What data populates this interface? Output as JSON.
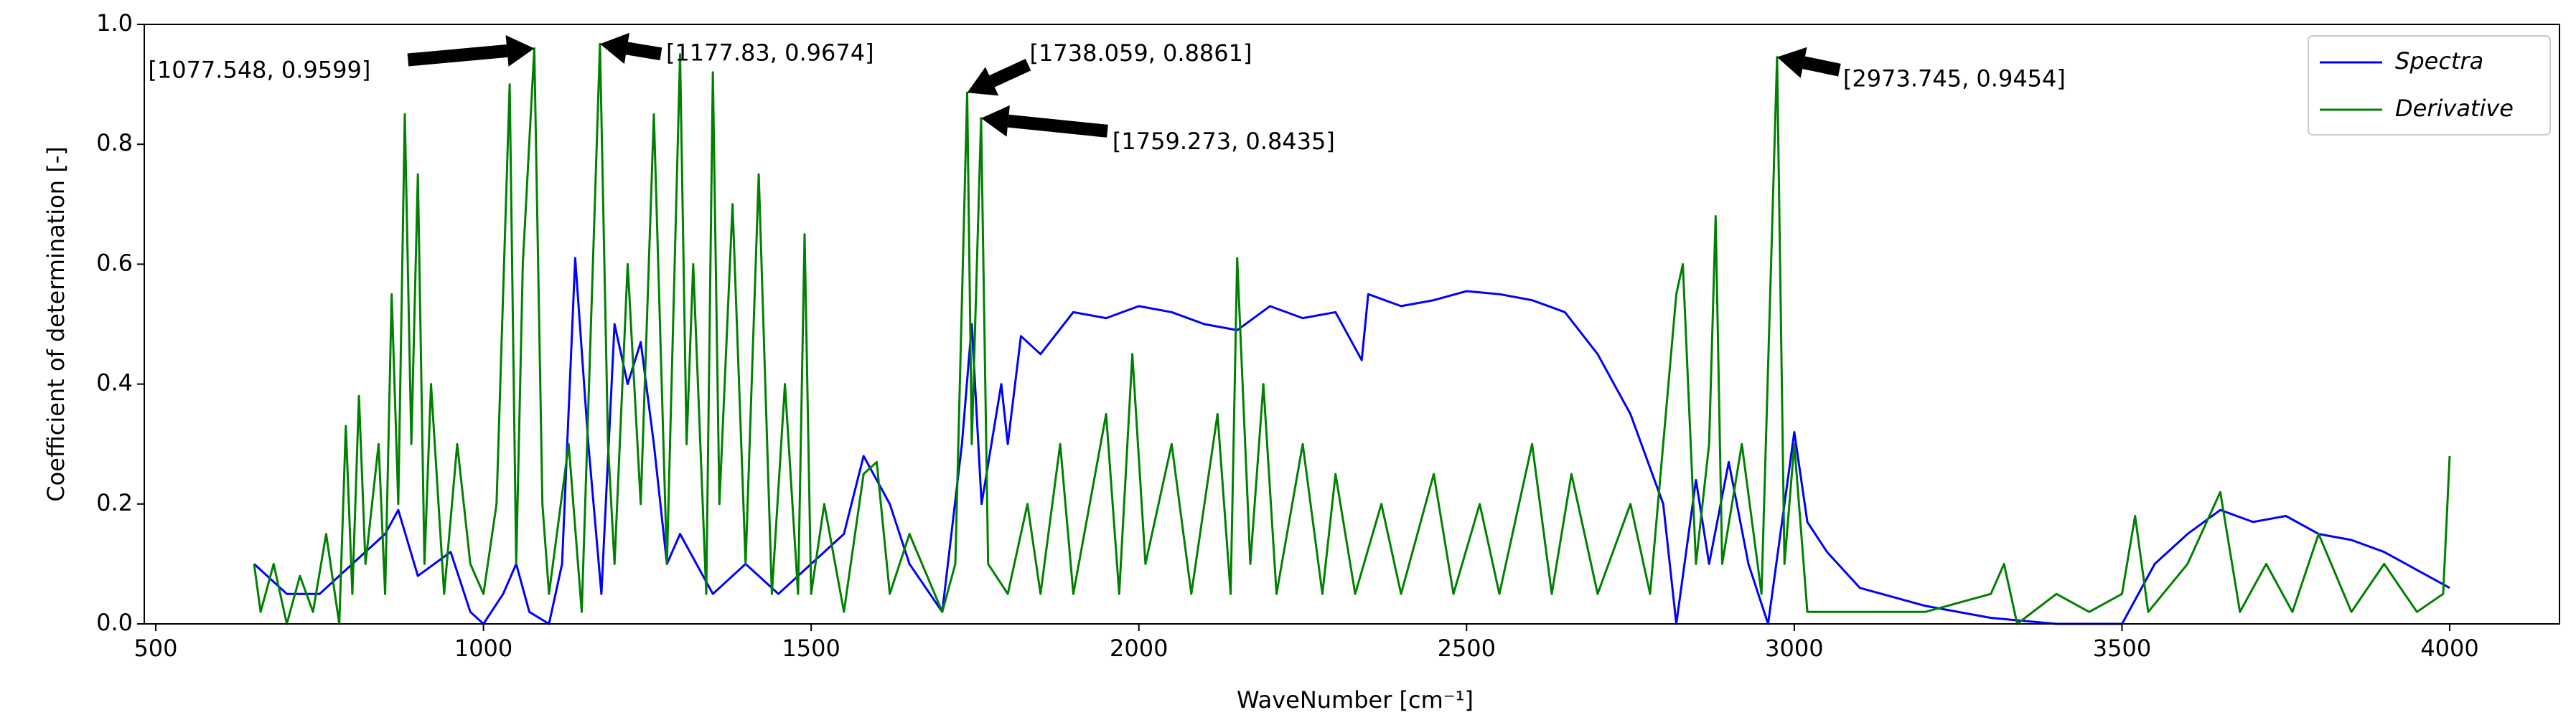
{
  "chart_data": {
    "type": "line",
    "xlabel": "WaveNumber [cm⁻¹]",
    "ylabel": "Coefficient of determination [-]",
    "xlim": [
      482.5,
      4167.5
    ],
    "ylim": [
      0,
      1
    ],
    "xticks": [
      500,
      1000,
      1500,
      2000,
      2500,
      3000,
      3500,
      4000
    ],
    "yticks": [
      {
        "value": 0,
        "label": "0.0"
      },
      0.2,
      0.4,
      0.6,
      0.8,
      {
        "value": 1,
        "label": "1.0"
      }
    ],
    "legend": "upper right",
    "series": [
      {
        "name": "Spectra",
        "color": "#0000ff",
        "x": [
          650,
          700,
          750,
          800,
          850,
          870,
          900,
          950,
          980,
          1000,
          1030,
          1050,
          1070,
          1100,
          1120,
          1140,
          1160,
          1180,
          1200,
          1220,
          1240,
          1260,
          1280,
          1300,
          1350,
          1400,
          1450,
          1500,
          1550,
          1580,
          1620,
          1650,
          1700,
          1730,
          1745,
          1760,
          1790,
          1800,
          1820,
          1850,
          1900,
          1950,
          2000,
          2050,
          2100,
          2150,
          2200,
          2250,
          2300,
          2340,
          2350,
          2400,
          2450,
          2500,
          2550,
          2600,
          2650,
          2700,
          2750,
          2800,
          2820,
          2850,
          2870,
          2900,
          2930,
          2960,
          3000,
          3020,
          3050,
          3100,
          3200,
          3300,
          3400,
          3500,
          3550,
          3600,
          3650,
          3700,
          3750,
          3800,
          3850,
          3900,
          3950,
          4000
        ],
        "values": [
          0.1,
          0.05,
          0.05,
          0.1,
          0.15,
          0.19,
          0.08,
          0.12,
          0.02,
          0.0,
          0.05,
          0.1,
          0.02,
          0.0,
          0.1,
          0.61,
          0.3,
          0.05,
          0.5,
          0.4,
          0.47,
          0.3,
          0.1,
          0.15,
          0.05,
          0.1,
          0.05,
          0.1,
          0.15,
          0.28,
          0.2,
          0.1,
          0.02,
          0.3,
          0.5,
          0.2,
          0.4,
          0.3,
          0.48,
          0.45,
          0.52,
          0.51,
          0.53,
          0.52,
          0.5,
          0.49,
          0.53,
          0.51,
          0.52,
          0.44,
          0.55,
          0.53,
          0.54,
          0.555,
          0.55,
          0.54,
          0.52,
          0.45,
          0.35,
          0.2,
          0.0,
          0.24,
          0.1,
          0.27,
          0.1,
          0.0,
          0.32,
          0.17,
          0.12,
          0.06,
          0.03,
          0.01,
          0.0,
          0.0,
          0.1,
          0.15,
          0.19,
          0.17,
          0.18,
          0.15,
          0.14,
          0.12,
          0.09,
          0.06
        ]
      },
      {
        "name": "Derivative",
        "color": "#008000",
        "x": [
          650,
          660,
          680,
          700,
          720,
          740,
          760,
          780,
          790,
          800,
          810,
          820,
          840,
          850,
          860,
          870,
          880,
          890,
          900,
          910,
          920,
          940,
          960,
          980,
          1000,
          1020,
          1040,
          1050,
          1060,
          1077.548,
          1090,
          1100,
          1130,
          1150,
          1177.83,
          1190,
          1200,
          1220,
          1240,
          1260,
          1280,
          1300,
          1310,
          1320,
          1340,
          1350,
          1360,
          1380,
          1400,
          1420,
          1440,
          1460,
          1480,
          1490,
          1500,
          1520,
          1550,
          1580,
          1600,
          1620,
          1650,
          1700,
          1720,
          1738.059,
          1745,
          1759.273,
          1770,
          1800,
          1830,
          1850,
          1880,
          1900,
          1950,
          1970,
          1990,
          2010,
          2050,
          2080,
          2120,
          2140,
          2150,
          2170,
          2190,
          2210,
          2250,
          2280,
          2300,
          2330,
          2370,
          2400,
          2450,
          2480,
          2520,
          2550,
          2600,
          2630,
          2660,
          2700,
          2750,
          2780,
          2820,
          2830,
          2850,
          2870,
          2880,
          2890,
          2920,
          2950,
          2973.745,
          2985,
          3000,
          3020,
          3100,
          3200,
          3300,
          3320,
          3340,
          3400,
          3450,
          3500,
          3520,
          3540,
          3600,
          3650,
          3680,
          3720,
          3760,
          3800,
          3850,
          3900,
          3950,
          3990,
          4000
        ],
        "values": [
          0.1,
          0.02,
          0.1,
          0.0,
          0.08,
          0.02,
          0.15,
          0.0,
          0.33,
          0.05,
          0.38,
          0.1,
          0.3,
          0.05,
          0.55,
          0.2,
          0.85,
          0.3,
          0.75,
          0.1,
          0.4,
          0.05,
          0.3,
          0.1,
          0.05,
          0.2,
          0.9,
          0.1,
          0.6,
          0.9599,
          0.2,
          0.05,
          0.3,
          0.02,
          0.9674,
          0.3,
          0.1,
          0.6,
          0.2,
          0.85,
          0.1,
          0.95,
          0.3,
          0.6,
          0.05,
          0.92,
          0.2,
          0.7,
          0.1,
          0.75,
          0.05,
          0.4,
          0.05,
          0.65,
          0.05,
          0.2,
          0.02,
          0.25,
          0.27,
          0.05,
          0.15,
          0.02,
          0.1,
          0.8861,
          0.3,
          0.8435,
          0.1,
          0.05,
          0.2,
          0.05,
          0.3,
          0.05,
          0.35,
          0.05,
          0.45,
          0.1,
          0.3,
          0.05,
          0.35,
          0.05,
          0.61,
          0.1,
          0.4,
          0.05,
          0.3,
          0.05,
          0.25,
          0.05,
          0.2,
          0.05,
          0.25,
          0.05,
          0.2,
          0.05,
          0.3,
          0.05,
          0.25,
          0.05,
          0.2,
          0.05,
          0.55,
          0.6,
          0.1,
          0.3,
          0.68,
          0.1,
          0.3,
          0.05,
          0.9454,
          0.1,
          0.3,
          0.02,
          0.02,
          0.02,
          0.05,
          0.1,
          0.0,
          0.05,
          0.02,
          0.05,
          0.18,
          0.02,
          0.1,
          0.22,
          0.02,
          0.1,
          0.02,
          0.15,
          0.02,
          0.1,
          0.02,
          0.05,
          0.28
        ]
      }
    ],
    "annotations": [
      {
        "text": "[1077.548, 0.9599]",
        "x": 1077.548,
        "y": 0.9599
      },
      {
        "text": "[1177.83, 0.9674]",
        "x": 1177.83,
        "y": 0.9674
      },
      {
        "text": "[1738.059, 0.8861]",
        "x": 1738.059,
        "y": 0.8861
      },
      {
        "text": "[1759.273, 0.8435]",
        "x": 1759.273,
        "y": 0.8435
      },
      {
        "text": "[2973.745, 0.9454]",
        "x": 2973.745,
        "y": 0.9454
      }
    ]
  }
}
